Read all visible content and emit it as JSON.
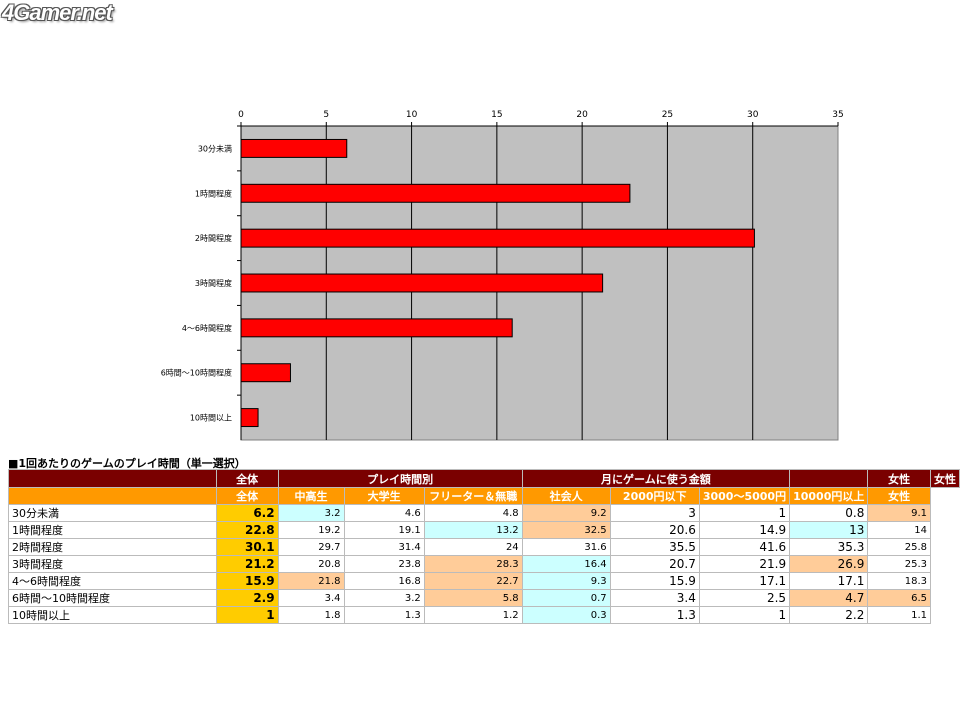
{
  "logo": "4Gamer.net",
  "chart_data": {
    "type": "bar",
    "orientation": "horizontal",
    "categories": [
      "30分未満",
      "1時間程度",
      "2時間程度",
      "3時間程度",
      "4～6時間程度",
      "6時間～10時間程度",
      "10時間以上"
    ],
    "values": [
      6.2,
      22.8,
      30.1,
      21.2,
      15.9,
      2.9,
      1
    ],
    "xlim": [
      0,
      35
    ],
    "xticks": [
      0,
      5,
      10,
      15,
      20,
      25,
      30,
      35
    ],
    "axis_position": "top",
    "bar_color": "#ff0000",
    "plot_background": "#c0c0c0",
    "grid": true,
    "legend": false
  },
  "table": {
    "title": "■1回あたりのゲームのプレイ時間（単一選択）",
    "header1": [
      "",
      "全体",
      "プレイ時間別",
      "月にゲームに使う金額",
      "",
      "女性",
      "女性"
    ],
    "header2": [
      "",
      "全体",
      "中高生",
      "大学生",
      "フリーター＆無職",
      "社会人",
      "2000円以下",
      "3000～5000円",
      "10000円以上",
      "女性"
    ],
    "rows": [
      {
        "label": "30分未満",
        "values": [
          "6.2",
          "3.2",
          "4.6",
          "4.8",
          "9.2",
          "3",
          "1",
          "0.8",
          "9.1"
        ]
      },
      {
        "label": "1時間程度",
        "values": [
          "22.8",
          "19.2",
          "19.1",
          "13.2",
          "32.5",
          "20.6",
          "14.9",
          "13",
          "14"
        ]
      },
      {
        "label": "2時間程度",
        "values": [
          "30.1",
          "29.7",
          "31.4",
          "24",
          "31.6",
          "35.5",
          "41.6",
          "35.3",
          "25.8"
        ]
      },
      {
        "label": "3時間程度",
        "values": [
          "21.2",
          "20.8",
          "23.8",
          "28.3",
          "16.4",
          "20.7",
          "21.9",
          "26.9",
          "25.3"
        ]
      },
      {
        "label": "4～6時間程度",
        "values": [
          "15.9",
          "21.8",
          "16.8",
          "22.7",
          "9.3",
          "15.9",
          "17.1",
          "17.1",
          "18.3"
        ]
      },
      {
        "label": "6時間～10時間程度",
        "values": [
          "2.9",
          "3.4",
          "3.2",
          "5.8",
          "0.7",
          "3.4",
          "2.5",
          "4.7",
          "6.5"
        ]
      },
      {
        "label": "10時間以上",
        "values": [
          "1",
          "1.8",
          "1.3",
          "1.2",
          "0.3",
          "1.3",
          "1",
          "2.2",
          "1.1"
        ]
      }
    ],
    "highlights": [
      [
        "",
        "b",
        "",
        "",
        "o",
        "",
        "",
        "",
        "o"
      ],
      [
        "",
        "",
        "",
        "b",
        "o",
        "",
        "",
        "b",
        ""
      ],
      [
        "",
        "",
        "",
        "",
        "",
        "",
        "",
        "",
        ""
      ],
      [
        "",
        "",
        "",
        "o",
        "b",
        "",
        "",
        "o",
        ""
      ],
      [
        "",
        "o",
        "",
        "o",
        "b",
        "",
        "",
        "",
        ""
      ],
      [
        "",
        "",
        "",
        "o",
        "b",
        "",
        "",
        "o",
        "o"
      ],
      [
        "",
        "",
        "",
        "",
        "b",
        "",
        "",
        "",
        ""
      ]
    ],
    "colors": {
      "header_dark": "#7a0000",
      "header_orange": "#ff9900",
      "total": "#ffcc00",
      "highlight_blue": "#ccffff",
      "highlight_orange": "#ffcc99"
    }
  }
}
